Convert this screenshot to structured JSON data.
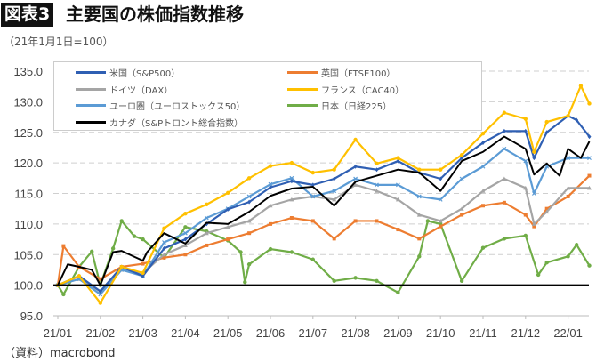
{
  "header": {
    "tag": "図表3",
    "title": "主要国の株価指数推移",
    "subtitle": "（21年1月1日=100）"
  },
  "source": "（資料）macrobond",
  "chart_data": {
    "type": "line",
    "title": "主要国の株価指数推移",
    "ylabel": "21年1月1日=100",
    "ylim": [
      95,
      135
    ],
    "yticks": [
      "95.0",
      "100.0",
      "105.0",
      "110.0",
      "115.0",
      "120.0",
      "125.0",
      "130.0",
      "135.0"
    ],
    "xticks": [
      "21/01",
      "21/02",
      "21/03",
      "21/04",
      "21/05",
      "21/06",
      "21/07",
      "21/08",
      "21/09",
      "21/10",
      "21/11",
      "21/12",
      "22/01"
    ],
    "xtick_dates": [
      "2021-01-01",
      "2021-02-01",
      "2021-03-01",
      "2021-04-01",
      "2021-05-01",
      "2021-06-01",
      "2021-07-01",
      "2021-08-01",
      "2021-09-01",
      "2021-10-01",
      "2021-11-01",
      "2021-12-01",
      "2022-01-01"
    ],
    "grid": true,
    "legend": "top-left",
    "reference_line": 100,
    "series": [
      {
        "name": "日本（日経225）",
        "color": "#70ad47",
        "marker": "circle",
        "points": [
          [
            "2021-01-01",
            100
          ],
          [
            "2021-01-05",
            98.5
          ],
          [
            "2021-01-16",
            103
          ],
          [
            "2021-01-25",
            105.5
          ],
          [
            "2021-02-01",
            100
          ],
          [
            "2021-02-10",
            106
          ],
          [
            "2021-02-16",
            110.5
          ],
          [
            "2021-02-25",
            108
          ],
          [
            "2021-03-01",
            107.5
          ],
          [
            "2021-03-16",
            104.5
          ],
          [
            "2021-04-01",
            109.5
          ],
          [
            "2021-04-16",
            108.8
          ],
          [
            "2021-05-01",
            107.3
          ],
          [
            "2021-05-10",
            105.4
          ],
          [
            "2021-05-13",
            100.5
          ],
          [
            "2021-05-16",
            103.4
          ],
          [
            "2021-06-01",
            105.9
          ],
          [
            "2021-06-16",
            105.4
          ],
          [
            "2021-07-01",
            104.2
          ],
          [
            "2021-07-16",
            100.7
          ],
          [
            "2021-08-01",
            101.2
          ],
          [
            "2021-08-16",
            100.7
          ],
          [
            "2021-09-01",
            98.8
          ],
          [
            "2021-09-16",
            104.7
          ],
          [
            "2021-09-22",
            110.5
          ],
          [
            "2021-10-01",
            110
          ],
          [
            "2021-10-16",
            100.7
          ],
          [
            "2021-11-01",
            106.1
          ],
          [
            "2021-11-16",
            107.6
          ],
          [
            "2021-12-01",
            108.1
          ],
          [
            "2021-12-10",
            101.7
          ],
          [
            "2021-12-16",
            103.7
          ],
          [
            "2022-01-01",
            104.7
          ],
          [
            "2022-01-07",
            106.6
          ],
          [
            "2022-01-16",
            103.2
          ]
        ]
      },
      {
        "name": "英国（FTSE100）",
        "color": "#ed7d31",
        "marker": "square",
        "points": [
          [
            "2021-01-01",
            100
          ],
          [
            "2021-01-05",
            106.4
          ],
          [
            "2021-01-16",
            103
          ],
          [
            "2021-02-01",
            101
          ],
          [
            "2021-02-16",
            103
          ],
          [
            "2021-03-01",
            103.5
          ],
          [
            "2021-03-16",
            104.5
          ],
          [
            "2021-04-01",
            105
          ],
          [
            "2021-04-16",
            106.5
          ],
          [
            "2021-05-01",
            107.5
          ],
          [
            "2021-05-16",
            108.5
          ],
          [
            "2021-06-01",
            110
          ],
          [
            "2021-06-16",
            111
          ],
          [
            "2021-07-01",
            110.5
          ],
          [
            "2021-07-16",
            107.6
          ],
          [
            "2021-08-01",
            110.5
          ],
          [
            "2021-08-16",
            110.5
          ],
          [
            "2021-09-01",
            109.1
          ],
          [
            "2021-09-16",
            107.6
          ],
          [
            "2021-10-01",
            109.6
          ],
          [
            "2021-10-16",
            111.5
          ],
          [
            "2021-11-01",
            113
          ],
          [
            "2021-11-16",
            113.5
          ],
          [
            "2021-12-01",
            111.5
          ],
          [
            "2021-12-07",
            109.6
          ],
          [
            "2021-12-16",
            112.5
          ],
          [
            "2022-01-01",
            114.5
          ],
          [
            "2022-01-16",
            117.9
          ]
        ]
      },
      {
        "name": "ドイツ（DAX）",
        "color": "#a5a5a5",
        "marker": "triangle",
        "points": [
          [
            "2021-01-01",
            100
          ],
          [
            "2021-01-16",
            101
          ],
          [
            "2021-02-01",
            99
          ],
          [
            "2021-02-16",
            102.5
          ],
          [
            "2021-03-01",
            102
          ],
          [
            "2021-03-16",
            105
          ],
          [
            "2021-04-01",
            106.5
          ],
          [
            "2021-04-16",
            108.5
          ],
          [
            "2021-05-01",
            109.5
          ],
          [
            "2021-05-16",
            110.5
          ],
          [
            "2021-06-01",
            113
          ],
          [
            "2021-06-16",
            114
          ],
          [
            "2021-07-01",
            114.5
          ],
          [
            "2021-07-16",
            114
          ],
          [
            "2021-08-01",
            116.4
          ],
          [
            "2021-08-16",
            115.4
          ],
          [
            "2021-09-01",
            114
          ],
          [
            "2021-09-16",
            111.5
          ],
          [
            "2021-10-01",
            110.5
          ],
          [
            "2021-10-16",
            112.5
          ],
          [
            "2021-11-01",
            115.4
          ],
          [
            "2021-11-16",
            117.4
          ],
          [
            "2021-12-01",
            115.9
          ],
          [
            "2021-12-07",
            110
          ],
          [
            "2021-12-16",
            112
          ],
          [
            "2022-01-01",
            115.9
          ],
          [
            "2022-01-16",
            115.9
          ]
        ]
      },
      {
        "name": "ユーロ圏（ユーロストックス50）",
        "color": "#5b9bd5",
        "marker": "x",
        "points": [
          [
            "2021-01-01",
            100
          ],
          [
            "2021-01-16",
            101
          ],
          [
            "2021-02-01",
            98.5
          ],
          [
            "2021-02-16",
            102.5
          ],
          [
            "2021-03-01",
            101.5
          ],
          [
            "2021-03-16",
            107
          ],
          [
            "2021-04-01",
            108.5
          ],
          [
            "2021-04-16",
            111
          ],
          [
            "2021-05-01",
            112.5
          ],
          [
            "2021-05-16",
            114.5
          ],
          [
            "2021-06-01",
            116.5
          ],
          [
            "2021-06-16",
            117.5
          ],
          [
            "2021-07-01",
            114.5
          ],
          [
            "2021-07-16",
            115.4
          ],
          [
            "2021-08-01",
            117.4
          ],
          [
            "2021-08-16",
            116.4
          ],
          [
            "2021-09-01",
            116.4
          ],
          [
            "2021-09-16",
            114.5
          ],
          [
            "2021-10-01",
            114
          ],
          [
            "2021-10-16",
            117.4
          ],
          [
            "2021-11-01",
            119.4
          ],
          [
            "2021-11-16",
            122.3
          ],
          [
            "2021-12-01",
            120.3
          ],
          [
            "2021-12-07",
            115
          ],
          [
            "2021-12-16",
            119.4
          ],
          [
            "2022-01-01",
            120.8
          ],
          [
            "2022-01-16",
            120.8
          ]
        ]
      },
      {
        "name": "米国（S&P500）",
        "color": "#2f5fb3",
        "marker": "diamond",
        "points": [
          [
            "2021-01-01",
            100
          ],
          [
            "2021-01-16",
            101.5
          ],
          [
            "2021-02-01",
            99
          ],
          [
            "2021-02-16",
            103
          ],
          [
            "2021-03-01",
            101.5
          ],
          [
            "2021-03-16",
            106
          ],
          [
            "2021-04-01",
            107.5
          ],
          [
            "2021-04-16",
            110
          ],
          [
            "2021-05-01",
            112.4
          ],
          [
            "2021-05-16",
            113.6
          ],
          [
            "2021-06-01",
            116
          ],
          [
            "2021-06-16",
            117
          ],
          [
            "2021-07-01",
            116.4
          ],
          [
            "2021-07-16",
            117.4
          ],
          [
            "2021-08-01",
            119.4
          ],
          [
            "2021-08-16",
            118.9
          ],
          [
            "2021-09-01",
            120.3
          ],
          [
            "2021-09-16",
            118.4
          ],
          [
            "2021-10-01",
            117.4
          ],
          [
            "2021-10-16",
            120.8
          ],
          [
            "2021-11-01",
            123.3
          ],
          [
            "2021-11-16",
            125.2
          ],
          [
            "2021-12-01",
            125.2
          ],
          [
            "2021-12-07",
            120.8
          ],
          [
            "2021-12-16",
            125
          ],
          [
            "2022-01-01",
            127.7
          ],
          [
            "2022-01-07",
            127
          ],
          [
            "2022-01-16",
            124.3
          ]
        ]
      },
      {
        "name": "フランス（CAC40）",
        "color": "#ffc000",
        "marker": "circle",
        "points": [
          [
            "2021-01-01",
            100
          ],
          [
            "2021-01-16",
            101.5
          ],
          [
            "2021-02-01",
            97.1
          ],
          [
            "2021-02-16",
            103
          ],
          [
            "2021-03-01",
            102
          ],
          [
            "2021-03-16",
            109.3
          ],
          [
            "2021-04-01",
            111.7
          ],
          [
            "2021-04-16",
            113.2
          ],
          [
            "2021-05-01",
            115.1
          ],
          [
            "2021-05-16",
            117.5
          ],
          [
            "2021-06-01",
            119.5
          ],
          [
            "2021-06-16",
            120
          ],
          [
            "2021-07-01",
            118.4
          ],
          [
            "2021-07-16",
            118.9
          ],
          [
            "2021-08-01",
            123.8
          ],
          [
            "2021-08-16",
            119.9
          ],
          [
            "2021-09-01",
            120.8
          ],
          [
            "2021-09-16",
            118.9
          ],
          [
            "2021-10-01",
            118.9
          ],
          [
            "2021-10-16",
            121.3
          ],
          [
            "2021-11-01",
            124.8
          ],
          [
            "2021-11-16",
            128.2
          ],
          [
            "2021-12-01",
            127.2
          ],
          [
            "2021-12-07",
            121.8
          ],
          [
            "2021-12-16",
            126.7
          ],
          [
            "2022-01-01",
            127.7
          ],
          [
            "2022-01-10",
            132.6
          ],
          [
            "2022-01-16",
            129.7
          ]
        ]
      },
      {
        "name": "カナダ（S&Pトロント総合指数）",
        "color": "#000000",
        "marker": "none",
        "points": [
          [
            "2021-01-01",
            100
          ],
          [
            "2021-01-08",
            103.4
          ],
          [
            "2021-01-16",
            103
          ],
          [
            "2021-01-25",
            102.5
          ],
          [
            "2021-02-01",
            100
          ],
          [
            "2021-02-10",
            105.4
          ],
          [
            "2021-02-16",
            105.6
          ],
          [
            "2021-03-01",
            104
          ],
          [
            "2021-03-04",
            105.4
          ],
          [
            "2021-03-16",
            108.5
          ],
          [
            "2021-04-01",
            106.8
          ],
          [
            "2021-04-16",
            110.2
          ],
          [
            "2021-05-01",
            110
          ],
          [
            "2021-05-16",
            112
          ],
          [
            "2021-06-01",
            114.6
          ],
          [
            "2021-06-16",
            115.8
          ],
          [
            "2021-07-01",
            116.1
          ],
          [
            "2021-07-16",
            113
          ],
          [
            "2021-08-01",
            116.9
          ],
          [
            "2021-08-16",
            117.9
          ],
          [
            "2021-09-01",
            118.9
          ],
          [
            "2021-09-16",
            118.4
          ],
          [
            "2021-10-01",
            115.4
          ],
          [
            "2021-10-16",
            120.3
          ],
          [
            "2021-11-01",
            121.8
          ],
          [
            "2021-11-16",
            124.3
          ],
          [
            "2021-12-01",
            122.3
          ],
          [
            "2021-12-07",
            118.1
          ],
          [
            "2021-12-16",
            119.9
          ],
          [
            "2021-12-25",
            117.9
          ],
          [
            "2022-01-01",
            122.3
          ],
          [
            "2022-01-10",
            120.8
          ],
          [
            "2022-01-16",
            123.5
          ]
        ]
      }
    ]
  }
}
